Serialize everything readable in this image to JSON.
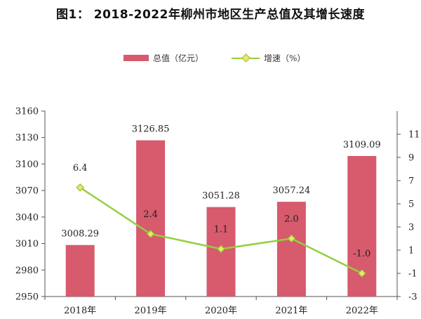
{
  "page_title": "图1： 2018-2022年柳州市地区生产总值及其增长速度",
  "legend": {
    "bar_label": "总值（亿元）",
    "line_label": "增速（%）"
  },
  "colors": {
    "bar": "#d75a6d",
    "line": "#92cf3f",
    "marker_fill": "#f1e36a",
    "marker_stroke": "#8cc53f",
    "axis": "#555555"
  },
  "chart_data": {
    "type": "bar",
    "title": "图1： 2018-2022年柳州市地区生产总值及其增长速度",
    "categories": [
      "2018年",
      "2019年",
      "2020年",
      "2021年",
      "2022年"
    ],
    "series": [
      {
        "name": "总值（亿元）",
        "type": "bar",
        "axis": "left",
        "values": [
          3008.29,
          3126.85,
          3051.28,
          3057.24,
          3109.09
        ],
        "labels": [
          "3008.29",
          "3126.85",
          "3051.28",
          "3057.24",
          "3109.09"
        ]
      },
      {
        "name": "增速（%）",
        "type": "line",
        "axis": "right",
        "values": [
          6.4,
          2.4,
          1.1,
          2.0,
          -1.0
        ],
        "labels": [
          "6.4",
          "2.4",
          "1.1",
          "2.0",
          "-1.0"
        ]
      }
    ],
    "y_left": {
      "min": 2950,
      "max": 3160,
      "ticks": [
        2950,
        2980,
        3010,
        3040,
        3070,
        3100,
        3130,
        3160
      ]
    },
    "y_right": {
      "min": -3,
      "max": 13,
      "ticks": [
        -3,
        -1,
        1,
        3,
        5,
        7,
        9,
        11
      ]
    },
    "grid": false,
    "legend_position": "top-center"
  }
}
